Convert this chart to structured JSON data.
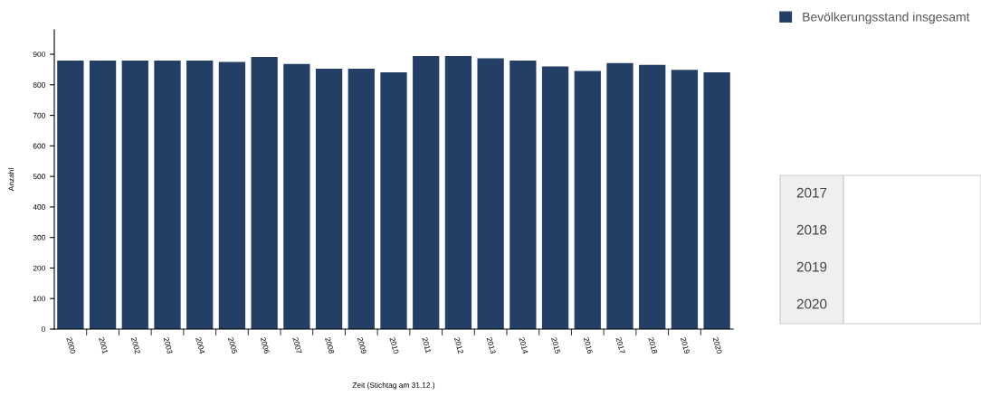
{
  "chart_data": {
    "type": "bar",
    "xlabel": "Zeit (Stichtag am 31.12.)",
    "ylabel": "Anzahl",
    "categories": [
      "2000",
      "2001",
      "2002",
      "2003",
      "2004",
      "2005",
      "2006",
      "2007",
      "2008",
      "2009",
      "2010",
      "2011",
      "2012",
      "2013",
      "2014",
      "2015",
      "2016",
      "2017",
      "2018",
      "2019",
      "2020"
    ],
    "series": [
      {
        "name": "Bevölkerungsstand insgesamt",
        "color": "#233f66",
        "values": [
          879,
          879,
          879,
          879,
          879,
          875,
          891,
          868,
          853,
          853,
          841,
          894,
          894,
          887,
          879,
          860,
          845,
          871,
          865,
          849,
          841
        ]
      }
    ],
    "ylim": [
      0,
      980
    ],
    "yticks": [
      0,
      100,
      200,
      300,
      400,
      500,
      600,
      700,
      800,
      900
    ],
    "grid": false,
    "legend": "top right",
    "annotations": [
      "2017",
      "2018",
      "2019",
      "2020"
    ]
  }
}
